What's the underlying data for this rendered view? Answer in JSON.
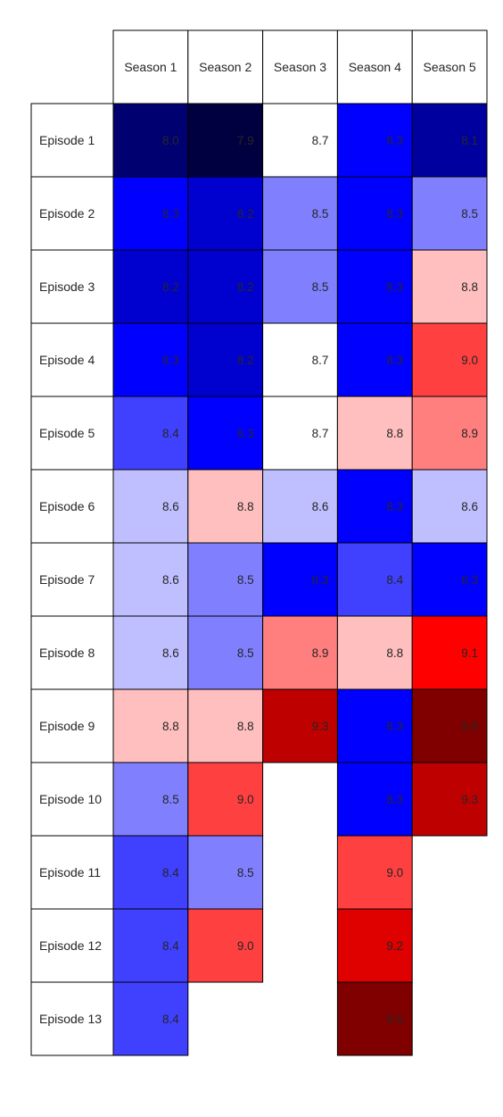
{
  "chart_data": {
    "type": "heatmap",
    "title": "",
    "xlabel": "",
    "ylabel": "",
    "columns": [
      "Season 1",
      "Season 2",
      "Season 3",
      "Season 4",
      "Season 5"
    ],
    "rows": [
      "Episode 1",
      "Episode 2",
      "Episode 3",
      "Episode 4",
      "Episode 5",
      "Episode 6",
      "Episode 7",
      "Episode 8",
      "Episode 9",
      "Episode 10",
      "Episode 11",
      "Episode 12",
      "Episode 13"
    ],
    "values": [
      [
        8.0,
        7.9,
        8.7,
        8.3,
        8.1
      ],
      [
        8.3,
        8.2,
        8.5,
        8.3,
        8.5
      ],
      [
        8.2,
        8.2,
        8.5,
        8.3,
        8.8
      ],
      [
        8.3,
        8.2,
        8.7,
        8.3,
        9.0
      ],
      [
        8.4,
        8.3,
        8.7,
        8.8,
        8.9
      ],
      [
        8.6,
        8.8,
        8.6,
        8.3,
        8.6
      ],
      [
        8.6,
        8.5,
        8.3,
        8.4,
        8.3
      ],
      [
        8.6,
        8.5,
        8.9,
        8.8,
        9.1
      ],
      [
        8.8,
        8.8,
        9.3,
        8.3,
        9.5
      ],
      [
        8.5,
        9.0,
        null,
        8.3,
        9.3
      ],
      [
        8.4,
        8.5,
        null,
        9.0,
        null
      ],
      [
        8.4,
        9.0,
        null,
        9.2,
        null
      ],
      [
        8.4,
        null,
        null,
        9.5,
        null
      ]
    ],
    "colorscale": "seismic",
    "color_range": [
      7.9,
      9.5
    ],
    "center_value": 8.7,
    "colors": {
      "dark_navy": "#000040",
      "blue": "#0000ff",
      "white": "#ffffff",
      "red": "#ff0000",
      "dark_red": "#800000"
    }
  }
}
